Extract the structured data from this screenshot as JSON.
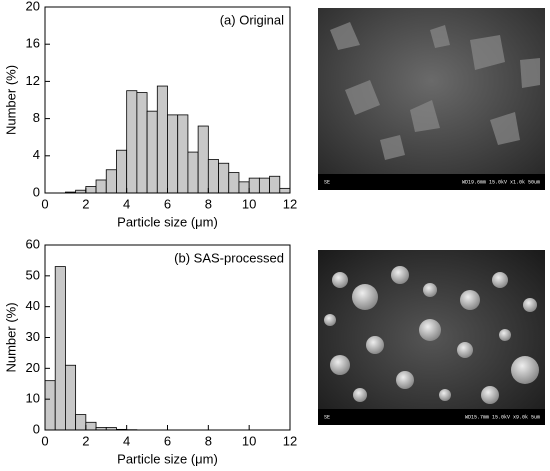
{
  "chart_data": [
    {
      "type": "histogram",
      "annotation": "(a) Original",
      "xlabel": "Particle size (μm)",
      "ylabel": "Number (%)",
      "bins": [
        0,
        0.5,
        1,
        1.5,
        2,
        2.5,
        3,
        3.5,
        4,
        4.5,
        5,
        5.5,
        6,
        6.5,
        7,
        7.5,
        8,
        8.5,
        9,
        9.5,
        10,
        10.5,
        11,
        11.5,
        12
      ],
      "values": [
        0,
        0,
        0.1,
        0.3,
        0.7,
        1.4,
        2.5,
        4.6,
        11.0,
        10.8,
        8.8,
        11.5,
        8.4,
        8.4,
        4.4,
        7.2,
        3.6,
        3.2,
        2.2,
        1.2,
        1.6,
        1.6,
        1.8,
        0.5
      ],
      "color": "#c8c8c8",
      "xlim": [
        0,
        12
      ],
      "ylim": [
        0,
        20
      ],
      "xticks": [
        0,
        2,
        4,
        6,
        8,
        10,
        12
      ],
      "yticks": [
        0,
        4,
        8,
        12,
        16,
        20
      ]
    },
    {
      "type": "histogram",
      "annotation": "(b) SAS-processed",
      "xlabel": "Particle size (μm)",
      "ylabel": "Number (%)",
      "bins": [
        0,
        0.5,
        1,
        1.5,
        2,
        2.5,
        3,
        3.5,
        4,
        4.5,
        5,
        5.5,
        6,
        6.5,
        7,
        7.5,
        8,
        8.5,
        9,
        9.5,
        10,
        10.5,
        11,
        11.5,
        12
      ],
      "values": [
        16,
        53,
        21,
        5,
        2.5,
        0.8,
        0.8,
        0.2,
        0.1,
        0,
        0,
        0,
        0,
        0,
        0,
        0,
        0,
        0,
        0,
        0,
        0,
        0,
        0,
        0
      ],
      "color": "#c8c8c8",
      "xlim": [
        0,
        12
      ],
      "ylim": [
        0,
        60
      ],
      "xticks": [
        0,
        2,
        4,
        6,
        8,
        10,
        12
      ],
      "yticks": [
        0,
        10,
        20,
        30,
        40,
        50,
        60
      ]
    }
  ],
  "images": [
    {
      "caption_left": "SE",
      "caption_right": "WD19.6mm 15.0kV x1.0k  50um"
    },
    {
      "caption_left": "SE",
      "caption_right": "WD15.7mm 15.0kV x9.0k   5um"
    }
  ]
}
